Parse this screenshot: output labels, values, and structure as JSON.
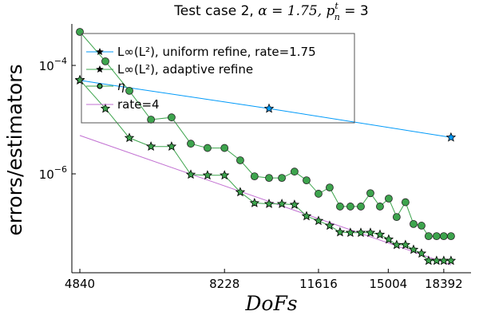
{
  "chart_data": {
    "type": "line",
    "title": {
      "prefix": "Test case 2, ",
      "alpha": "α = 1.75, ",
      "p": "p",
      "p_sup": "t",
      "p_sub": "n",
      "suffix": " = 3"
    },
    "xlabel": "DoFs",
    "ylabel": "errors/estimators",
    "xscale": "log",
    "yscale": "log",
    "xlim": [
      4700,
      20030
    ],
    "ylim": [
      1.5e-08,
      0.00069
    ],
    "xticks": [
      4840,
      8228,
      11616,
      15004,
      18392
    ],
    "xtick_labels": [
      "4840",
      "8228",
      "11616",
      "15004",
      "18392"
    ],
    "yticks": [
      0.0001,
      1e-06
    ],
    "ytick_labels": [
      {
        "base": "10",
        "exp": "−4"
      },
      {
        "base": "10",
        "exp": "−6"
      }
    ],
    "grid": false,
    "legend_position": "top-left",
    "series": [
      {
        "name": "L∞(L²), uniform refine, rate=1.75",
        "color": "#009af9",
        "marker": "star",
        "x": [
          4840,
          9689,
          18887
        ],
        "y": [
          5.3e-05,
          1.6e-05,
          4.7e-06
        ]
      },
      {
        "name": "L∞(L²), adaptive refine",
        "color": "#3da44d",
        "marker": "star",
        "x": [
          4840,
          5315,
          5804,
          6283,
          6776,
          7271,
          7731,
          8228,
          8717,
          9186,
          9689,
          10155,
          10637,
          11117,
          11616,
          12101,
          12571,
          13058,
          13568,
          14052,
          14554,
          15029,
          15473,
          15981,
          16460,
          16950,
          17395,
          17913,
          18392,
          18887
        ],
        "y": [
          5.4e-05,
          1.6e-05,
          4.6e-06,
          3.2e-06,
          3.2e-06,
          9.7e-07,
          9.4e-07,
          9.4e-07,
          4.6e-07,
          2.9e-07,
          2.8e-07,
          2.8e-07,
          2.7e-07,
          1.66e-07,
          1.36e-07,
          1.11e-07,
          8.4e-08,
          8.2e-08,
          8.2e-08,
          8.2e-08,
          7.6e-08,
          6.2e-08,
          4.9e-08,
          4.9e-08,
          4e-08,
          3.4e-08,
          2.5e-08,
          2.5e-08,
          2.5e-08,
          2.5e-08
        ]
      },
      {
        "name": "η",
        "color": "#3da44d",
        "marker": "circle",
        "x": [
          4840,
          5315,
          5804,
          6283,
          6776,
          7271,
          7731,
          8228,
          8717,
          9186,
          9689,
          10155,
          10637,
          11117,
          11616,
          12101,
          12571,
          13058,
          13568,
          14052,
          14554,
          15029,
          15473,
          15981,
          16460,
          16950,
          17395,
          17913,
          18392,
          18887
        ],
        "y": [
          0.000415,
          0.000119,
          3.4e-05,
          1e-05,
          1.1e-05,
          3.6e-06,
          3e-06,
          3e-06,
          1.78e-06,
          9e-07,
          8.4e-07,
          8.4e-07,
          1.1e-06,
          7.6e-07,
          4.3e-07,
          5.6e-07,
          2.5e-07,
          2.5e-07,
          2.5e-07,
          4.4e-07,
          2.5e-07,
          3.5e-07,
          1.6e-07,
          3e-07,
          1.19e-07,
          1.11e-07,
          7.1e-08,
          7.1e-08,
          7.1e-08,
          7.1e-08
        ]
      },
      {
        "name": "rate=4",
        "color": "#c271d2",
        "marker": "none",
        "x": [
          4840,
          18887
        ],
        "y": [
          5.1e-06,
          2.1e-08
        ]
      }
    ]
  }
}
